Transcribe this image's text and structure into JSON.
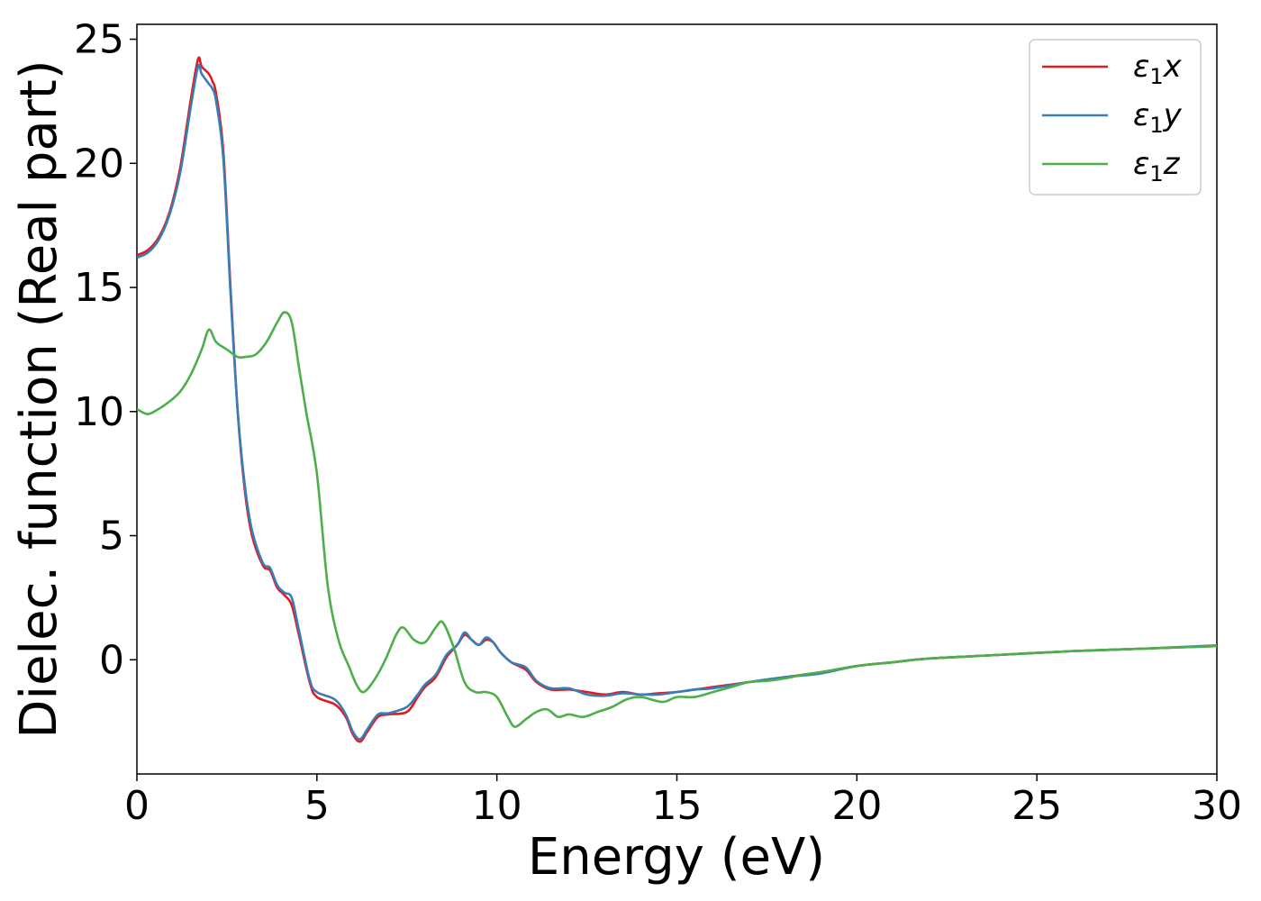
{
  "chart_data": {
    "type": "line",
    "xlabel": "Energy (eV)",
    "ylabel": "Dielec. function (Real part)",
    "xlim": [
      0,
      30
    ],
    "ylim": [
      -4.6,
      25.6
    ],
    "xticks": [
      0,
      5,
      10,
      15,
      20,
      25,
      30
    ],
    "yticks": [
      0,
      5,
      10,
      15,
      20,
      25
    ],
    "legend_position": "top-right",
    "grid": false,
    "series": [
      {
        "name": "ε1x",
        "label_base": "ε",
        "label_sub": "1",
        "label_suffix": "x",
        "color": "#e41a1c",
        "x": [
          0,
          0.3,
          0.6,
          0.9,
          1.2,
          1.5,
          1.7,
          1.8,
          2.0,
          2.1,
          2.2,
          2.4,
          2.6,
          2.8,
          3.0,
          3.2,
          3.5,
          3.7,
          3.9,
          4.1,
          4.3,
          4.5,
          4.8,
          5.0,
          5.5,
          5.8,
          6.0,
          6.2,
          6.4,
          6.7,
          7.0,
          7.5,
          7.8,
          8.0,
          8.3,
          8.6,
          8.9,
          9.1,
          9.3,
          9.5,
          9.7,
          9.9,
          10.1,
          10.4,
          10.8,
          11.1,
          11.5,
          12.0,
          12.5,
          13.0,
          13.5,
          14.0,
          14.5,
          15.0,
          15.5,
          16.0,
          17.0,
          18.0,
          19.0,
          20.0,
          21.0,
          22.0,
          24.0,
          26.0,
          28.0,
          30.0
        ],
        "y": [
          16.3,
          16.5,
          17.0,
          18.0,
          19.8,
          22.6,
          24.2,
          23.9,
          23.6,
          23.3,
          22.8,
          20.5,
          15.0,
          10.0,
          6.8,
          5.0,
          3.8,
          3.6,
          2.9,
          2.6,
          2.2,
          1.0,
          -0.9,
          -1.5,
          -1.8,
          -2.3,
          -3.0,
          -3.3,
          -2.9,
          -2.3,
          -2.2,
          -2.1,
          -1.5,
          -1.1,
          -0.7,
          0.1,
          0.6,
          1.0,
          0.8,
          0.6,
          0.8,
          0.7,
          0.3,
          -0.1,
          -0.4,
          -0.9,
          -1.2,
          -1.2,
          -1.3,
          -1.4,
          -1.3,
          -1.4,
          -1.35,
          -1.3,
          -1.2,
          -1.1,
          -0.9,
          -0.7,
          -0.5,
          -0.25,
          -0.1,
          0.05,
          0.2,
          0.35,
          0.45,
          0.55
        ]
      },
      {
        "name": "ε1y",
        "label_base": "ε",
        "label_sub": "1",
        "label_suffix": "y",
        "color": "#377eb8",
        "x": [
          0,
          0.3,
          0.6,
          0.9,
          1.2,
          1.5,
          1.7,
          1.8,
          2.0,
          2.1,
          2.2,
          2.4,
          2.6,
          2.8,
          3.0,
          3.2,
          3.5,
          3.7,
          3.9,
          4.1,
          4.3,
          4.5,
          4.8,
          5.0,
          5.5,
          5.8,
          6.0,
          6.2,
          6.4,
          6.7,
          7.0,
          7.5,
          7.8,
          8.0,
          8.3,
          8.6,
          8.9,
          9.1,
          9.3,
          9.5,
          9.7,
          9.9,
          10.1,
          10.4,
          10.8,
          11.1,
          11.5,
          12.0,
          12.5,
          13.0,
          13.5,
          14.0,
          14.5,
          15.0,
          15.5,
          16.0,
          17.0,
          18.0,
          19.0,
          20.0,
          21.0,
          22.0,
          24.0,
          26.0,
          28.0,
          30.0
        ],
        "y": [
          16.2,
          16.4,
          16.9,
          17.9,
          19.6,
          22.3,
          23.9,
          23.6,
          23.2,
          23.0,
          22.5,
          20.2,
          14.8,
          10.0,
          7.0,
          5.2,
          3.9,
          3.7,
          3.0,
          2.7,
          2.5,
          1.2,
          -0.8,
          -1.3,
          -1.6,
          -2.2,
          -2.9,
          -3.2,
          -2.8,
          -2.2,
          -2.15,
          -1.9,
          -1.4,
          -1.0,
          -0.6,
          0.2,
          0.6,
          1.1,
          0.8,
          0.6,
          0.9,
          0.7,
          0.3,
          -0.1,
          -0.3,
          -0.85,
          -1.15,
          -1.15,
          -1.4,
          -1.45,
          -1.35,
          -1.4,
          -1.4,
          -1.3,
          -1.2,
          -1.15,
          -0.9,
          -0.7,
          -0.55,
          -0.25,
          -0.1,
          0.05,
          0.2,
          0.35,
          0.45,
          0.58
        ]
      },
      {
        "name": "ε1z",
        "label_base": "ε",
        "label_sub": "1",
        "label_suffix": "z",
        "color": "#4daf4a",
        "x": [
          0,
          0.3,
          0.6,
          0.9,
          1.2,
          1.5,
          1.8,
          2.0,
          2.2,
          2.5,
          2.8,
          3.0,
          3.3,
          3.6,
          3.9,
          4.1,
          4.3,
          4.5,
          4.7,
          5.0,
          5.3,
          5.6,
          5.9,
          6.1,
          6.3,
          6.6,
          6.9,
          7.2,
          7.4,
          7.7,
          8.0,
          8.3,
          8.5,
          8.8,
          9.1,
          9.4,
          9.7,
          10.0,
          10.3,
          10.5,
          10.8,
          11.1,
          11.4,
          11.7,
          12.0,
          12.4,
          12.8,
          13.2,
          13.6,
          14.0,
          14.6,
          15.0,
          15.5,
          16.0,
          16.5,
          17.0,
          17.5,
          18.0,
          18.5,
          19.0,
          20.0,
          21.0,
          22.0,
          24.0,
          26.0,
          28.0,
          30.0
        ],
        "y": [
          10.1,
          9.9,
          10.1,
          10.4,
          10.8,
          11.5,
          12.5,
          13.3,
          12.8,
          12.5,
          12.2,
          12.2,
          12.3,
          12.8,
          13.6,
          14.0,
          13.6,
          11.8,
          10.0,
          7.5,
          3.0,
          0.8,
          -0.3,
          -1.0,
          -1.3,
          -0.8,
          0.0,
          1.0,
          1.3,
          0.8,
          0.7,
          1.3,
          1.5,
          0.5,
          -0.9,
          -1.3,
          -1.3,
          -1.5,
          -2.3,
          -2.7,
          -2.4,
          -2.1,
          -2.0,
          -2.3,
          -2.2,
          -2.3,
          -2.1,
          -1.9,
          -1.6,
          -1.5,
          -1.7,
          -1.5,
          -1.5,
          -1.3,
          -1.1,
          -0.9,
          -0.85,
          -0.75,
          -0.6,
          -0.5,
          -0.25,
          -0.1,
          0.05,
          0.2,
          0.35,
          0.45,
          0.55
        ]
      }
    ]
  }
}
